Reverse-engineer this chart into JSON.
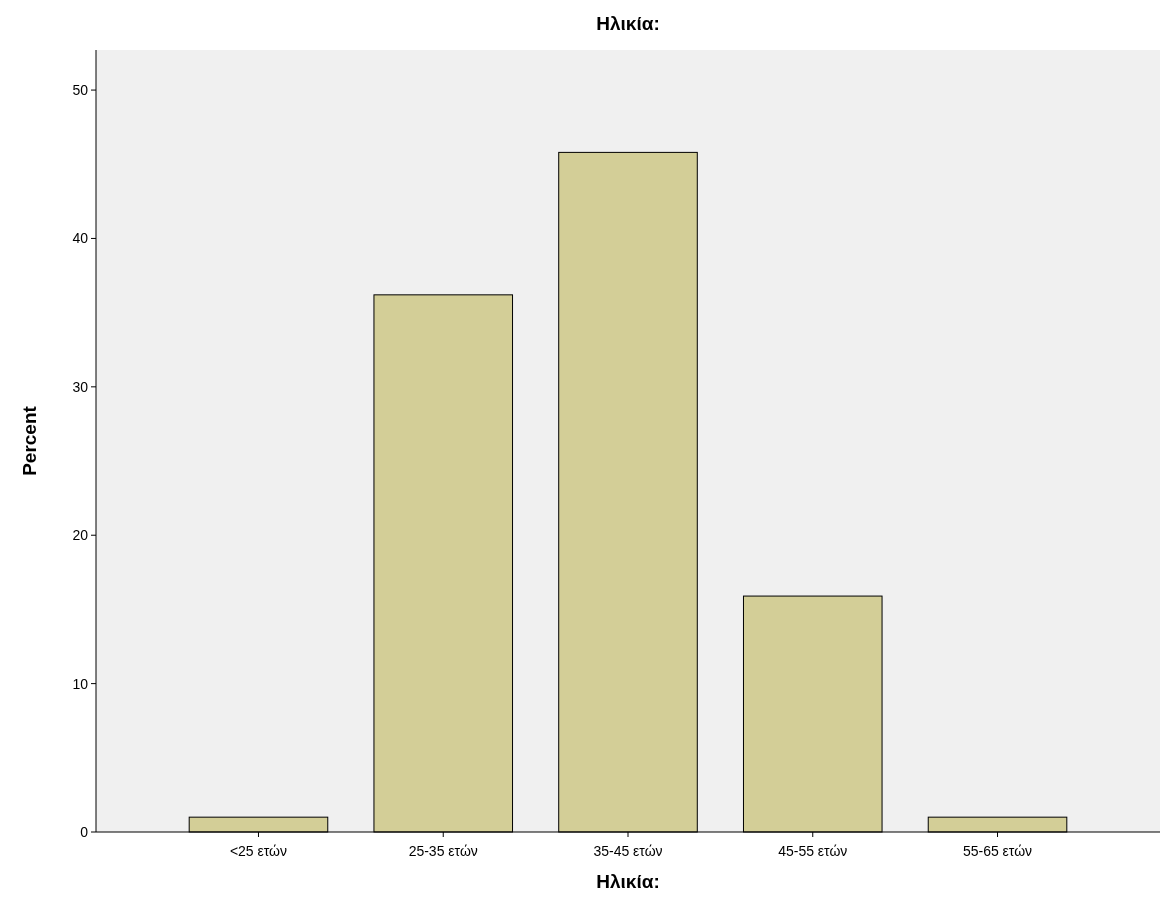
{
  "chart_data": {
    "type": "bar",
    "title": "Ηλικία:",
    "xlabel": "Ηλικία:",
    "ylabel": "Percent",
    "categories": [
      "<25 ετών",
      "25-35 ετών",
      "35-45 ετών",
      "45-55 ετών",
      "55-65 ετών"
    ],
    "values": [
      1.0,
      36.2,
      45.8,
      15.9,
      1.0
    ],
    "color": "#d3ce97",
    "ylim": [
      0,
      52.7
    ],
    "yticks": [
      0,
      10,
      20,
      30,
      40,
      50
    ],
    "grid": false
  }
}
